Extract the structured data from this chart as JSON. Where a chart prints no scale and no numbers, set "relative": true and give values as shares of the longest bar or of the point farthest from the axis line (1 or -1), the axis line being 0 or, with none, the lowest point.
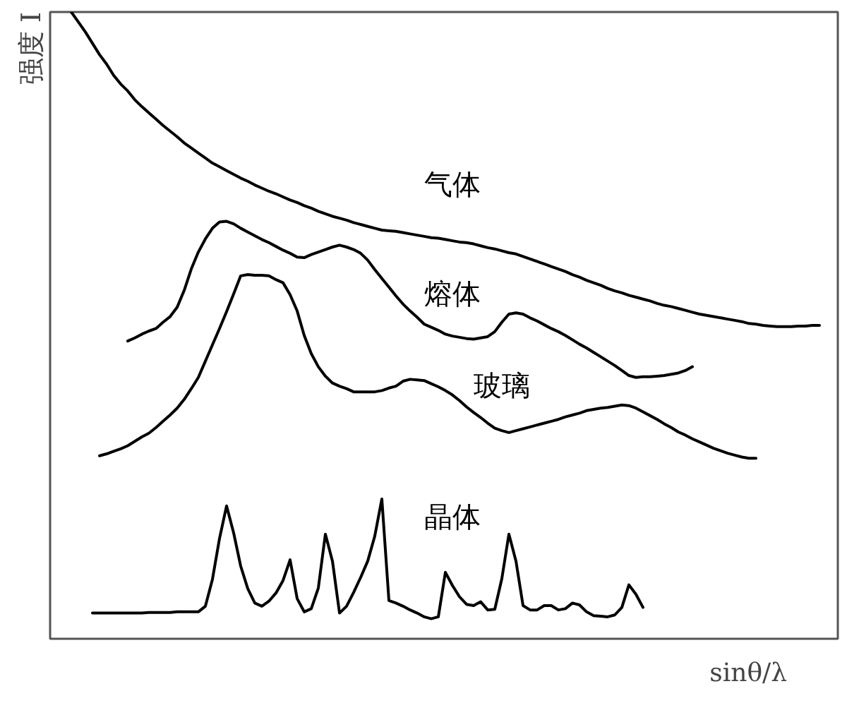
{
  "chart_data": {
    "type": "line",
    "relative": true,
    "xlabel": "sinθ/λ",
    "ylabel": "强度 I",
    "categories": [
      null,
      null,
      null,
      null,
      null,
      null,
      null,
      null,
      null,
      null,
      null,
      null,
      null,
      null,
      null,
      null,
      null,
      null,
      null,
      null,
      null,
      null,
      null,
      null,
      null,
      null,
      null,
      null,
      null,
      null,
      null,
      null,
      null,
      null,
      null,
      null,
      null,
      null,
      null,
      null,
      null,
      null,
      null,
      null,
      null,
      null,
      null,
      null,
      null,
      null,
      null,
      null,
      null,
      null,
      null,
      null,
      null,
      null,
      null,
      null,
      null,
      null,
      null,
      null,
      null,
      null,
      null,
      null,
      null,
      null,
      null,
      null,
      null,
      null,
      null,
      null,
      null,
      null,
      null,
      null,
      null,
      null,
      null,
      null,
      null,
      null,
      null,
      null,
      null,
      null,
      null,
      null,
      null,
      null,
      null,
      null,
      null,
      null,
      null,
      null,
      null,
      null,
      null,
      null,
      null,
      null,
      null,
      null,
      null,
      null,
      null
    ],
    "series": [
      {
        "name": "气体",
        "color": "#000000",
        "values": [
          null,
          null,
          1,
          0.984,
          0.968,
          0.95,
          0.932,
          0.917,
          0.899,
          0.885,
          0.874,
          0.86,
          0.849,
          0.839,
          0.829,
          0.819,
          0.81,
          0.801,
          0.791,
          0.783,
          0.775,
          0.767,
          0.759,
          0.753,
          0.747,
          0.741,
          0.735,
          0.73,
          0.724,
          0.719,
          0.714,
          0.71,
          0.705,
          0.7,
          0.696,
          0.691,
          0.687,
          0.682,
          0.678,
          0.674,
          0.671,
          0.668,
          0.664,
          0.661,
          0.658,
          0.655,
          0.652,
          0.651,
          0.65,
          0.648,
          0.646,
          0.644,
          0.642,
          0.64,
          0.639,
          0.637,
          0.635,
          0.633,
          0.632,
          0.63,
          0.627,
          0.624,
          0.622,
          0.619,
          0.616,
          0.614,
          0.61,
          0.606,
          0.602,
          0.598,
          0.594,
          0.59,
          0.586,
          0.581,
          0.577,
          0.572,
          0.568,
          0.564,
          0.559,
          0.555,
          0.552,
          0.548,
          0.545,
          0.542,
          0.539,
          0.535,
          0.532,
          0.53,
          0.527,
          0.524,
          0.521,
          0.518,
          0.516,
          0.514,
          0.512,
          0.51,
          0.508,
          0.506,
          0.503,
          0.502,
          0.5,
          0.499,
          0.498,
          0.498,
          0.498,
          0.499,
          0.499,
          0.5,
          0.5,
          null,
          null
        ]
      },
      {
        "name": "熔体",
        "color": "#000000",
        "values": [
          null,
          null,
          null,
          null,
          null,
          null,
          null,
          null,
          null,
          null,
          0.475,
          0.48,
          0.486,
          0.491,
          0.495,
          0.505,
          0.514,
          0.529,
          0.556,
          0.59,
          0.617,
          0.638,
          0.655,
          0.665,
          0.666,
          0.662,
          0.655,
          0.649,
          0.643,
          0.637,
          0.632,
          0.626,
          0.62,
          0.615,
          0.609,
          0.608,
          0.613,
          0.617,
          0.621,
          0.625,
          0.628,
          0.625,
          0.621,
          0.615,
          0.604,
          0.589,
          0.575,
          0.561,
          0.547,
          0.534,
          0.523,
          0.513,
          0.502,
          0.497,
          0.492,
          0.486,
          0.483,
          0.481,
          0.479,
          0.478,
          0.48,
          0.482,
          0.49,
          0.505,
          0.518,
          0.52,
          0.518,
          0.512,
          0.507,
          0.501,
          0.495,
          0.49,
          0.484,
          0.477,
          0.47,
          0.464,
          0.457,
          0.45,
          0.443,
          0.436,
          0.428,
          0.42,
          0.417,
          0.418,
          0.418,
          0.419,
          0.42,
          0.422,
          0.424,
          0.428,
          0.434,
          null,
          null,
          null,
          null,
          null,
          null,
          null,
          null,
          null,
          null,
          null,
          null,
          null,
          null,
          null,
          null,
          null,
          null,
          null,
          null
        ]
      },
      {
        "name": "玻璃",
        "color": "#000000",
        "values": [
          null,
          null,
          null,
          null,
          null,
          null,
          0.292,
          0.295,
          0.299,
          0.303,
          0.308,
          0.315,
          0.322,
          0.328,
          0.337,
          0.347,
          0.357,
          0.368,
          0.382,
          0.399,
          0.417,
          0.443,
          0.469,
          0.495,
          0.522,
          0.55,
          0.579,
          0.581,
          0.58,
          0.58,
          0.579,
          0.573,
          0.568,
          0.549,
          0.523,
          0.484,
          0.455,
          0.434,
          0.419,
          0.408,
          0.403,
          0.399,
          0.394,
          0.394,
          0.394,
          0.394,
          0.396,
          0.4,
          0.403,
          0.411,
          0.414,
          0.413,
          0.412,
          0.407,
          0.402,
          0.396,
          0.389,
          0.38,
          0.37,
          0.361,
          0.353,
          0.344,
          0.336,
          0.332,
          0.329,
          0.332,
          0.335,
          0.338,
          0.341,
          0.344,
          0.347,
          0.35,
          0.354,
          0.357,
          0.36,
          0.364,
          0.366,
          0.368,
          0.369,
          0.371,
          0.373,
          0.372,
          0.368,
          0.362,
          0.356,
          0.35,
          0.343,
          0.337,
          0.33,
          0.325,
          0.319,
          0.314,
          0.309,
          0.304,
          0.3,
          0.296,
          0.293,
          0.29,
          0.288,
          0.288,
          null,
          null,
          null,
          null,
          null,
          null,
          null,
          null,
          null,
          null,
          null
        ]
      },
      {
        "name": "晶体",
        "color": "#000000",
        "values": [
          null,
          null,
          null,
          null,
          null,
          0.041,
          0.041,
          0.041,
          0.041,
          0.041,
          0.041,
          0.041,
          0.041,
          0.042,
          0.042,
          0.042,
          0.042,
          0.043,
          0.043,
          0.043,
          0.043,
          0.052,
          0.095,
          0.16,
          0.212,
          0.169,
          0.116,
          0.08,
          0.057,
          0.052,
          0.06,
          0.073,
          0.093,
          0.126,
          0.064,
          0.043,
          0.048,
          0.081,
          0.167,
          0.124,
          0.041,
          0.052,
          0.074,
          0.098,
          0.124,
          0.164,
          0.223,
          0.061,
          0.057,
          0.052,
          0.046,
          0.041,
          0.035,
          0.032,
          0.035,
          0.106,
          0.085,
          0.067,
          0.055,
          0.053,
          0.059,
          0.046,
          0.047,
          0.096,
          0.167,
          0.124,
          0.053,
          0.046,
          0.046,
          0.053,
          0.053,
          0.046,
          0.048,
          0.057,
          0.054,
          0.043,
          0.037,
          0.036,
          0.035,
          0.038,
          0.05,
          0.086,
          0.071,
          0.05,
          null,
          null,
          null,
          null,
          null,
          null,
          null,
          null,
          null,
          null,
          null,
          null,
          null,
          null,
          null,
          null,
          null,
          null,
          null,
          null,
          null,
          null,
          null,
          null,
          null,
          null,
          null
        ]
      }
    ]
  }
}
